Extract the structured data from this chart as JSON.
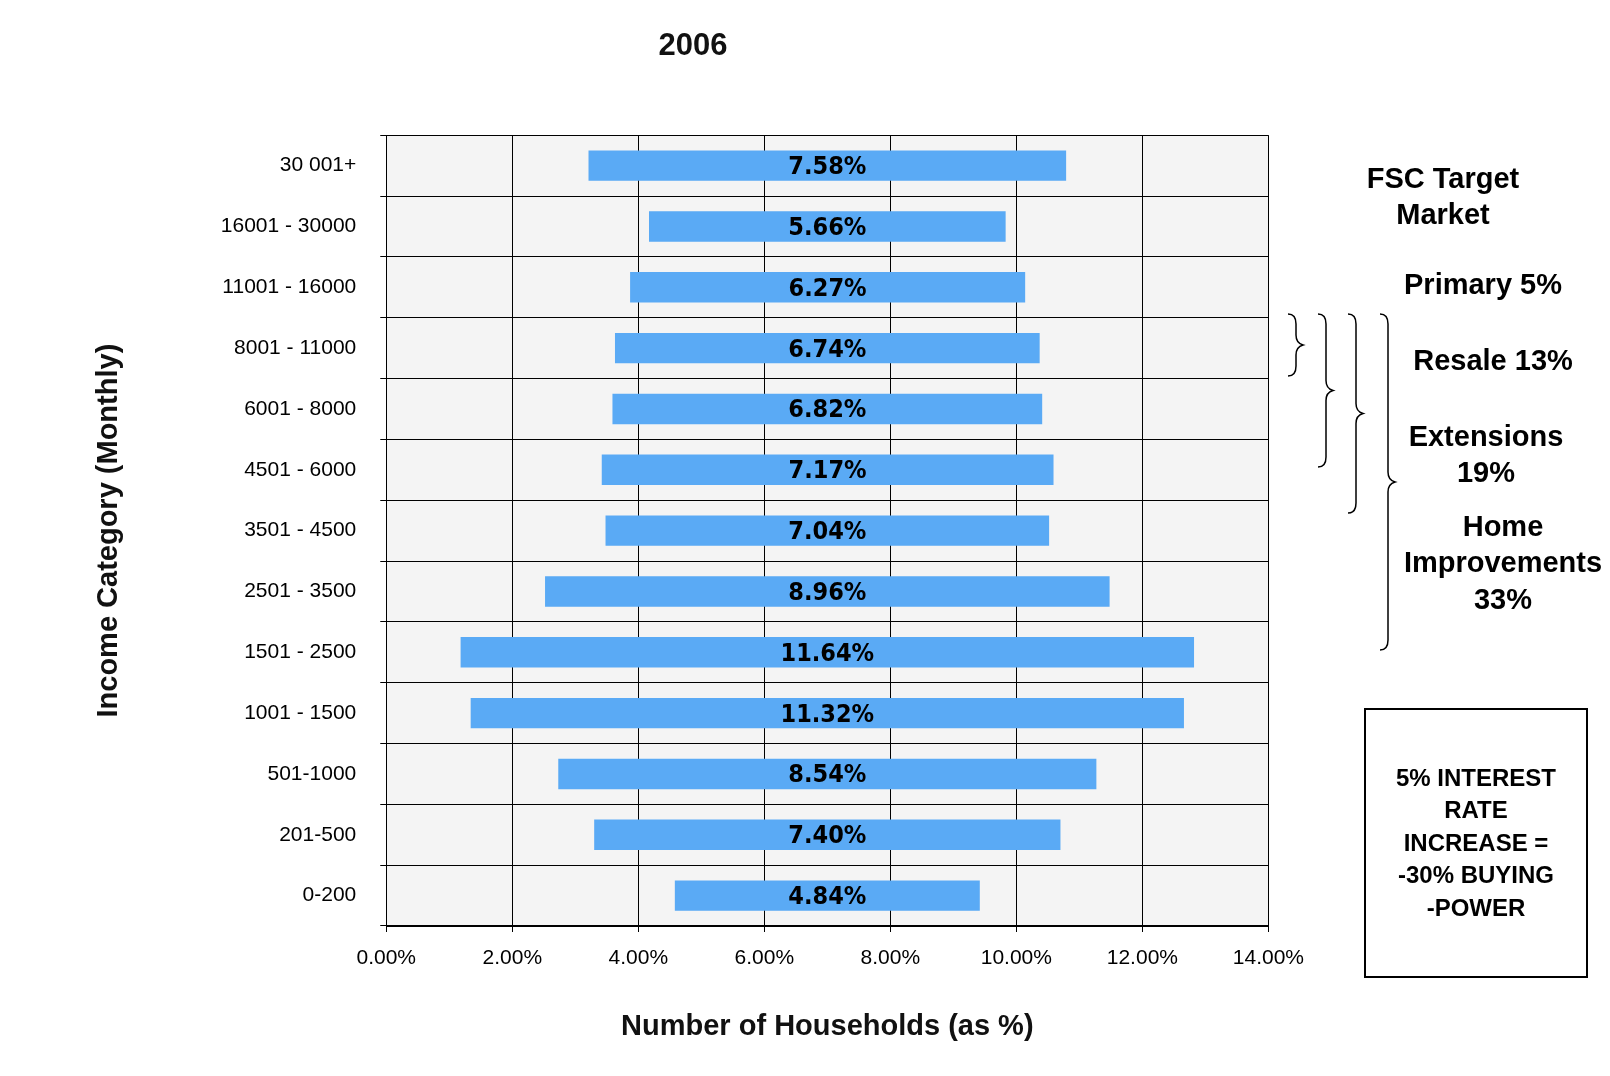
{
  "chart_data": {
    "type": "bar",
    "orientation": "horizontal",
    "title": "2006",
    "xlabel": "Number of Households (as %)",
    "ylabel": "Income Category (Monthly)",
    "categories": [
      "30 001+",
      "16001 - 30000",
      "11001 - 16000",
      "8001 - 11000",
      "6001 - 8000",
      "4501 - 6000",
      "3501 - 4500",
      "2501 - 3500",
      "1501 - 2500",
      "1001 - 1500",
      "501-1000",
      "201-500",
      "0-200"
    ],
    "values": [
      7.58,
      5.66,
      6.27,
      6.74,
      6.82,
      7.17,
      7.04,
      8.96,
      11.64,
      11.32,
      8.54,
      7.4,
      4.84
    ],
    "base": [
      3.21,
      4.17,
      3.87,
      3.63,
      3.59,
      3.42,
      3.48,
      2.52,
      1.18,
      1.34,
      2.73,
      3.3,
      4.58
    ],
    "value_labels": [
      "7.58%",
      "5.66%",
      "6.27%",
      "6.74%",
      "6.82%",
      "7.17%",
      "7.04%",
      "8.96%",
      "11.64%",
      "11.32%",
      "8.54%",
      "7.40%",
      "4.84%"
    ],
    "color": "#5aaaf5",
    "xlim": [
      0,
      14
    ],
    "xticks": [
      {
        "value": 0,
        "label": "0.00%"
      },
      {
        "value": 2,
        "label": "2.00%"
      },
      {
        "value": 4,
        "label": "4.00%"
      },
      {
        "value": 6,
        "label": "6.00%"
      },
      {
        "value": 8,
        "label": "8.00%"
      },
      {
        "value": 10,
        "label": "10.00%"
      },
      {
        "value": 12,
        "label": "12.00%"
      },
      {
        "value": 14,
        "label": "14.00%"
      }
    ],
    "grid": true,
    "legend": false,
    "annotations": [
      "FSC Target Market",
      "Primary 5%",
      "Resale 13%",
      "Extensions 19%",
      "Home Improvements 33%",
      "5% INTEREST RATE INCREASE = -30% BUYING -POWER"
    ]
  }
}
